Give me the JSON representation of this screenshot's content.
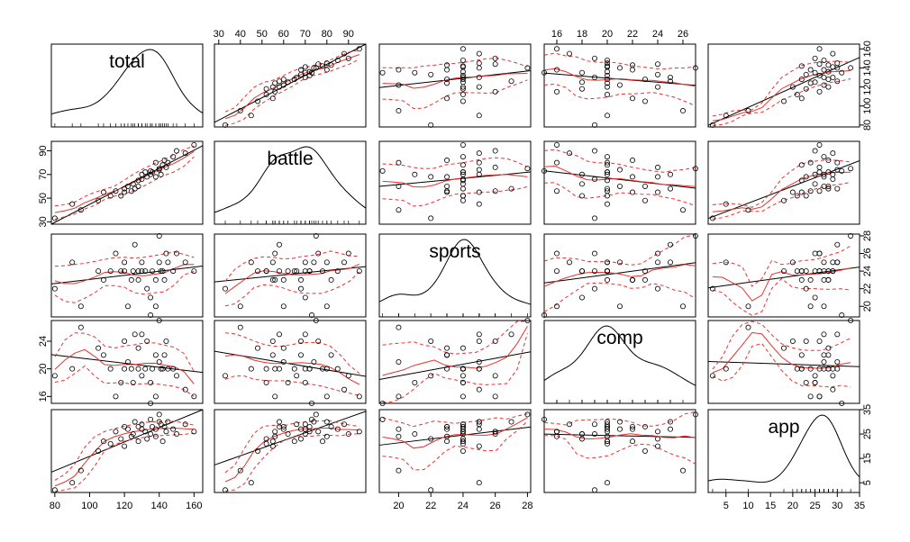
{
  "chart_data": {
    "type": "scatter",
    "title": "",
    "variables": [
      {
        "name": "total",
        "range": [
          78,
          165
        ],
        "ticks": [
          80,
          100,
          120,
          140,
          160
        ]
      },
      {
        "name": "battle",
        "range": [
          28,
          98
        ],
        "ticks": [
          30,
          50,
          70,
          90
        ]
      },
      {
        "name": "sports",
        "range": [
          18.8,
          28.2
        ],
        "ticks": [
          20,
          22,
          24,
          26,
          28
        ]
      },
      {
        "name": "comp",
        "range": [
          15,
          27
        ],
        "ticks": [
          16,
          18,
          20,
          22,
          24,
          26
        ]
      },
      {
        "name": "app",
        "range": [
          1,
          35
        ],
        "ticks": [
          5,
          10,
          15,
          20,
          25,
          30,
          35
        ]
      }
    ],
    "top_axis_ticks": {
      "battle": [
        30,
        40,
        50,
        60,
        70,
        80,
        90
      ],
      "comp": [
        16,
        18,
        20,
        22,
        24,
        26
      ]
    },
    "regression_line_color": "#000000",
    "smooth_line_color": "#e8322f",
    "point_color": "#000000",
    "observations": {
      "total": [
        80,
        90,
        95,
        105,
        108,
        112,
        115,
        118,
        120,
        120,
        122,
        124,
        125,
        126,
        128,
        128,
        130,
        130,
        132,
        133,
        135,
        135,
        136,
        138,
        138,
        140,
        140,
        141,
        142,
        143,
        144,
        145,
        148,
        150,
        155,
        160
      ],
      "battle": [
        33,
        45,
        40,
        48,
        55,
        52,
        56,
        52,
        58,
        55,
        60,
        56,
        62,
        58,
        65,
        60,
        70,
        66,
        72,
        68,
        73,
        70,
        72,
        68,
        80,
        74,
        75,
        70,
        78,
        82,
        76,
        80,
        85,
        90,
        88,
        95
      ],
      "sports": [
        22,
        25,
        20,
        24,
        23,
        24,
        26,
        24,
        24,
        25,
        20,
        23,
        24,
        27,
        24,
        23,
        25,
        24,
        24,
        22,
        19,
        21,
        24,
        23,
        20,
        25,
        28,
        24,
        24,
        23,
        26,
        25,
        24,
        26,
        25,
        24
      ],
      "comp": [
        19,
        20,
        26,
        23,
        22,
        20,
        16,
        18,
        20,
        24,
        21,
        20,
        18,
        25,
        20,
        23,
        25,
        19,
        20,
        24,
        15,
        18,
        20,
        22,
        16,
        21,
        27,
        20,
        20,
        22,
        24,
        20,
        20,
        19,
        17,
        16
      ],
      "app": [
        2,
        5,
        10,
        18,
        22,
        21,
        26,
        23,
        28,
        20,
        27,
        24,
        25,
        30,
        22,
        28,
        27,
        29,
        26,
        23,
        31,
        25,
        28,
        27,
        24,
        30,
        33,
        29,
        22,
        28,
        26,
        30,
        27,
        25,
        29,
        26
      ]
    }
  }
}
